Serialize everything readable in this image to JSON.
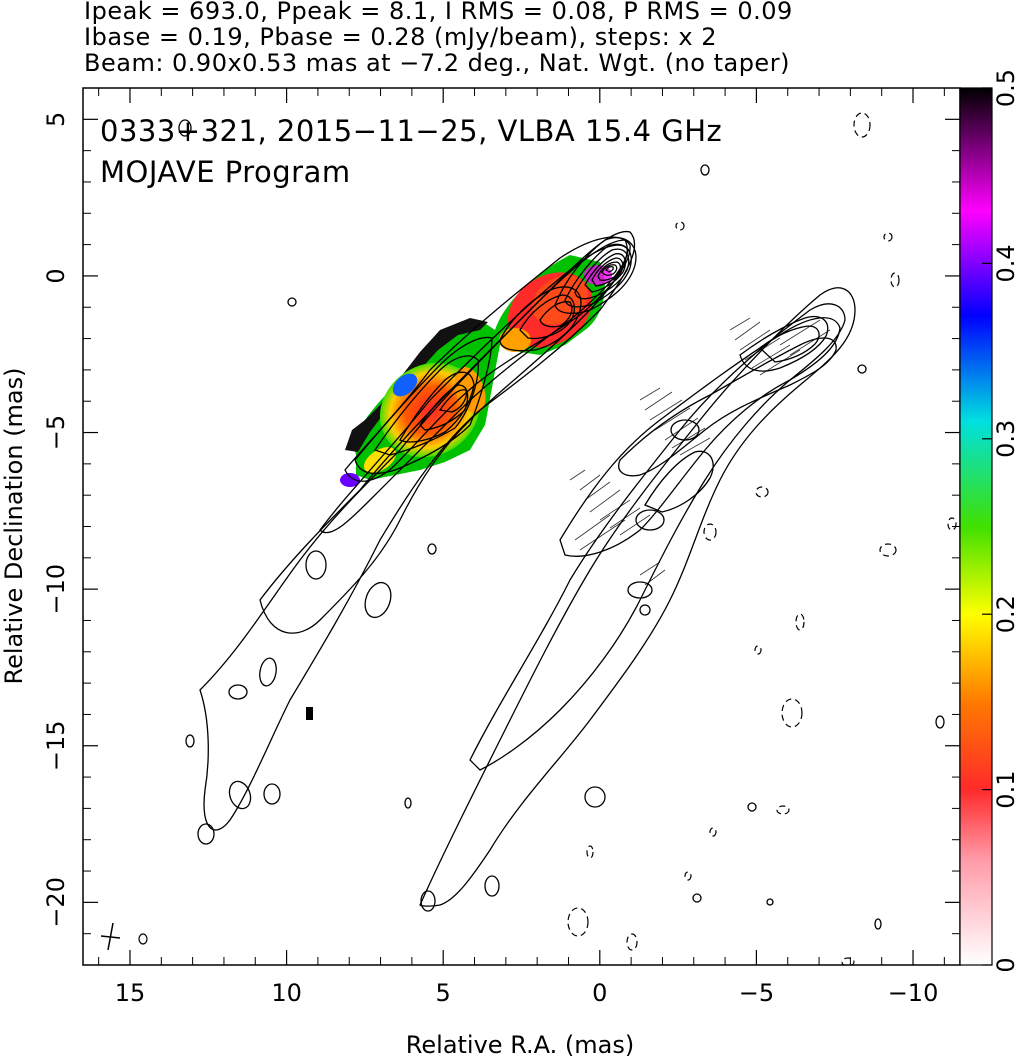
{
  "header": {
    "line1": "Ipeak = 693.0, Ppeak = 8.1, I RMS = 0.08, P RMS = 0.09",
    "line2": "Ibase = 0.19, Pbase = 0.28 (mJy/beam), steps: x 2",
    "line3": "Beam: 0.90x0.53 mas at −7.2 deg., Nat. Wgt. (no taper)"
  },
  "annotations": {
    "source_line": "0333+321, 2015−11−25, VLBA 15.4 GHz",
    "program_line": "MOJAVE Program"
  },
  "chart_data": {
    "type": "heatmap",
    "xlabel": "Relative R.A. (mas)",
    "ylabel": "Relative Declination (mas)",
    "xlim": [
      16.5,
      -11.5
    ],
    "ylim": [
      -22,
      6
    ],
    "x_ticks": [
      15,
      10,
      5,
      0,
      -5,
      -10
    ],
    "x_tick_labels": [
      "15",
      "10",
      "5",
      "0",
      "−5",
      "−10"
    ],
    "y_ticks": [
      5,
      0,
      -5,
      -10,
      -15,
      -20
    ],
    "y_tick_labels": [
      "5",
      "0",
      "−5",
      "−10",
      "−15",
      "−20"
    ],
    "colorbar": {
      "range": [
        0,
        0.5
      ],
      "ticks": [
        0,
        0.1,
        0.2,
        0.3,
        0.4,
        0.5
      ],
      "tick_labels": [
        "0",
        "0.1",
        "0.2",
        "0.3",
        "0.4",
        "0.5"
      ],
      "colors": [
        "#ffffff",
        "#ff2a2a",
        "#ff9a00",
        "#ffff00",
        "#00e000",
        "#00e0e0",
        "#0000ff",
        "#ff00ff",
        "#000000"
      ]
    },
    "beam": {
      "major_mas": 0.9,
      "minor_mas": 0.53,
      "pa_deg": -7.2
    },
    "image1_core": {
      "x": 0,
      "y": 0
    },
    "image2_core": {
      "x": -7.3,
      "y": -2.2
    },
    "fractional_polarization_regions": [
      {
        "x": 1.5,
        "y": -1.2,
        "value": 0.12
      },
      {
        "x": 3.0,
        "y": -2.5,
        "value": 0.2
      },
      {
        "x": 5.0,
        "y": -4.0,
        "value": 0.1
      },
      {
        "x": 7.0,
        "y": -5.5,
        "value": 0.3
      }
    ]
  }
}
